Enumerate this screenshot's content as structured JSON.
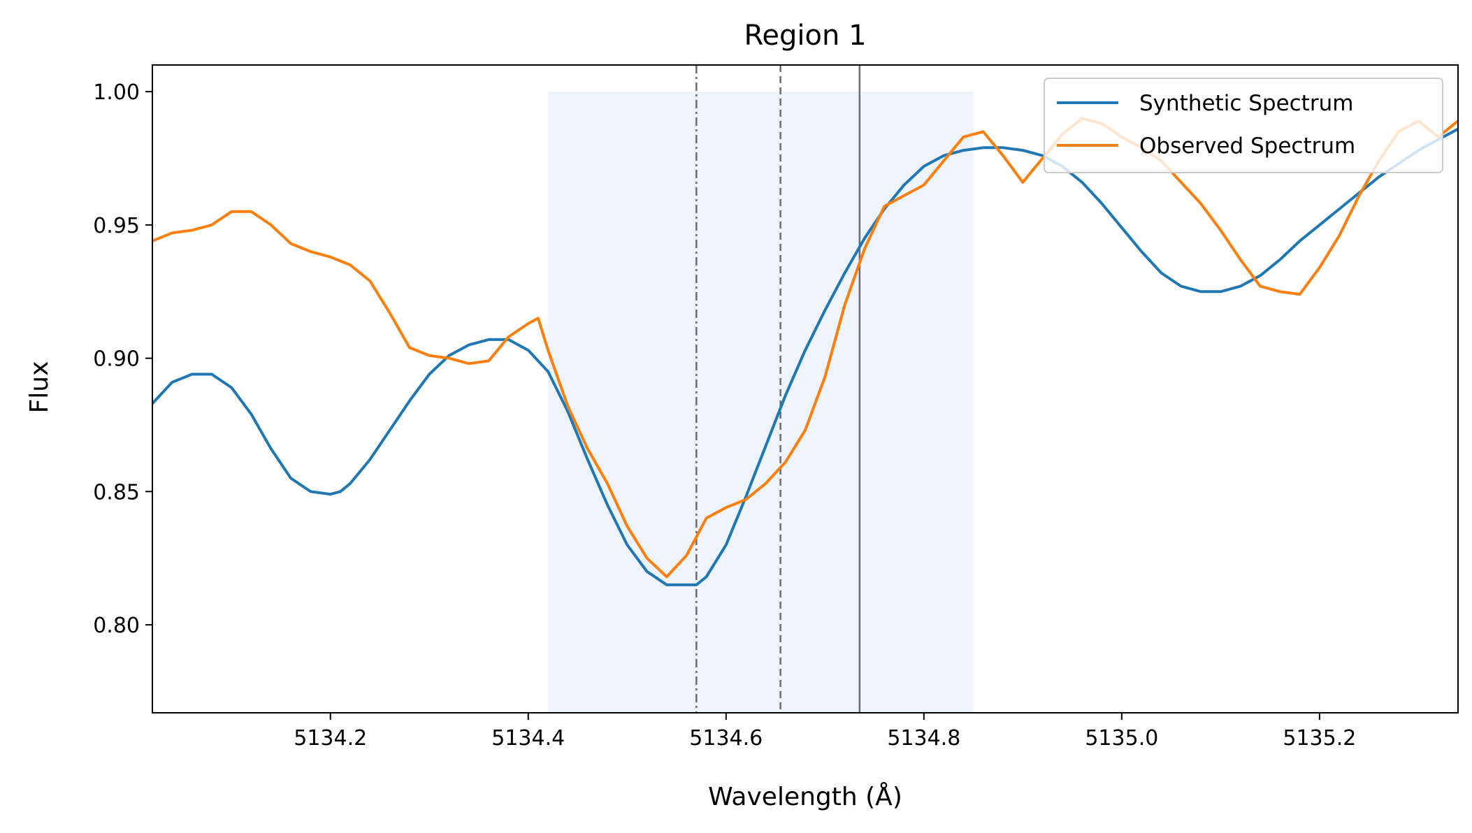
{
  "chart_data": {
    "type": "line",
    "title": "Region 1",
    "xlabel": "Wavelength (Å)",
    "ylabel": "Flux",
    "xlim": [
      5134.02,
      5135.34
    ],
    "ylim": [
      0.767,
      1.01
    ],
    "xticks": [
      5134.2,
      5134.4,
      5134.6,
      5134.8,
      5135.0,
      5135.2
    ],
    "xtick_labels": [
      "5134.2",
      "5134.4",
      "5134.6",
      "5134.8",
      "5135.0",
      "5135.2"
    ],
    "yticks": [
      0.8,
      0.85,
      0.9,
      0.95,
      1.0
    ],
    "ytick_labels": [
      "0.80",
      "0.85",
      "0.90",
      "0.95",
      "1.00"
    ],
    "grid": false,
    "legend_position": "top-right",
    "shaded_region": {
      "x": [
        5134.42,
        5134.85
      ],
      "y": [
        0.767,
        1.0
      ],
      "color": "#eef3fc"
    },
    "vertical_lines": [
      {
        "x": 5134.57,
        "style": "dashdot",
        "color": "#6b6b75"
      },
      {
        "x": 5134.655,
        "style": "dashed",
        "color": "#6b6b75"
      },
      {
        "x": 5134.735,
        "style": "solid",
        "color": "#6b6b75"
      }
    ],
    "series": [
      {
        "name": "Synthetic Spectrum",
        "color": "#1f77b4",
        "x": [
          5134.02,
          5134.04,
          5134.06,
          5134.08,
          5134.1,
          5134.12,
          5134.14,
          5134.16,
          5134.18,
          5134.2,
          5134.21,
          5134.22,
          5134.24,
          5134.26,
          5134.28,
          5134.3,
          5134.32,
          5134.34,
          5134.36,
          5134.38,
          5134.4,
          5134.42,
          5134.44,
          5134.46,
          5134.48,
          5134.5,
          5134.52,
          5134.54,
          5134.56,
          5134.57,
          5134.58,
          5134.6,
          5134.62,
          5134.64,
          5134.66,
          5134.68,
          5134.7,
          5134.72,
          5134.74,
          5134.76,
          5134.78,
          5134.8,
          5134.82,
          5134.84,
          5134.86,
          5134.88,
          5134.9,
          5134.92,
          5134.94,
          5134.96,
          5134.98,
          5135.0,
          5135.02,
          5135.04,
          5135.06,
          5135.08,
          5135.1,
          5135.12,
          5135.14,
          5135.16,
          5135.18,
          5135.2,
          5135.22,
          5135.24,
          5135.26,
          5135.28,
          5135.3,
          5135.32,
          5135.34
        ],
        "y": [
          0.883,
          0.891,
          0.894,
          0.894,
          0.889,
          0.879,
          0.866,
          0.855,
          0.85,
          0.849,
          0.85,
          0.853,
          0.862,
          0.873,
          0.884,
          0.894,
          0.901,
          0.905,
          0.907,
          0.907,
          0.903,
          0.895,
          0.88,
          0.862,
          0.845,
          0.83,
          0.82,
          0.815,
          0.815,
          0.815,
          0.818,
          0.83,
          0.848,
          0.867,
          0.886,
          0.903,
          0.918,
          0.932,
          0.945,
          0.956,
          0.965,
          0.972,
          0.976,
          0.978,
          0.979,
          0.979,
          0.978,
          0.976,
          0.972,
          0.966,
          0.958,
          0.949,
          0.94,
          0.932,
          0.927,
          0.925,
          0.925,
          0.927,
          0.931,
          0.937,
          0.944,
          0.95,
          0.956,
          0.962,
          0.968,
          0.973,
          0.978,
          0.982,
          0.986
        ]
      },
      {
        "name": "Observed Spectrum",
        "color": "#ff7f0e",
        "x": [
          5134.02,
          5134.04,
          5134.06,
          5134.08,
          5134.1,
          5134.12,
          5134.14,
          5134.16,
          5134.18,
          5134.2,
          5134.22,
          5134.24,
          5134.26,
          5134.28,
          5134.3,
          5134.32,
          5134.34,
          5134.36,
          5134.38,
          5134.4,
          5134.41,
          5134.42,
          5134.44,
          5134.46,
          5134.48,
          5134.5,
          5134.52,
          5134.54,
          5134.56,
          5134.58,
          5134.6,
          5134.62,
          5134.64,
          5134.66,
          5134.68,
          5134.7,
          5134.72,
          5134.74,
          5134.76,
          5134.78,
          5134.8,
          5134.82,
          5134.84,
          5134.86,
          5134.88,
          5134.9,
          5134.92,
          5134.94,
          5134.96,
          5134.98,
          5135.0,
          5135.02,
          5135.04,
          5135.06,
          5135.08,
          5135.1,
          5135.12,
          5135.14,
          5135.16,
          5135.18,
          5135.2,
          5135.22,
          5135.24,
          5135.26,
          5135.28,
          5135.3,
          5135.32,
          5135.34
        ],
        "y": [
          0.944,
          0.947,
          0.948,
          0.95,
          0.955,
          0.955,
          0.95,
          0.943,
          0.94,
          0.938,
          0.935,
          0.929,
          0.917,
          0.904,
          0.901,
          0.9,
          0.898,
          0.899,
          0.908,
          0.913,
          0.915,
          0.903,
          0.882,
          0.866,
          0.853,
          0.837,
          0.825,
          0.818,
          0.826,
          0.84,
          0.844,
          0.847,
          0.853,
          0.861,
          0.873,
          0.893,
          0.92,
          0.941,
          0.957,
          0.961,
          0.965,
          0.974,
          0.983,
          0.985,
          0.976,
          0.966,
          0.975,
          0.984,
          0.99,
          0.988,
          0.983,
          0.979,
          0.974,
          0.966,
          0.958,
          0.948,
          0.937,
          0.927,
          0.925,
          0.924,
          0.934,
          0.946,
          0.961,
          0.974,
          0.985,
          0.989,
          0.983,
          0.989
        ]
      }
    ]
  }
}
